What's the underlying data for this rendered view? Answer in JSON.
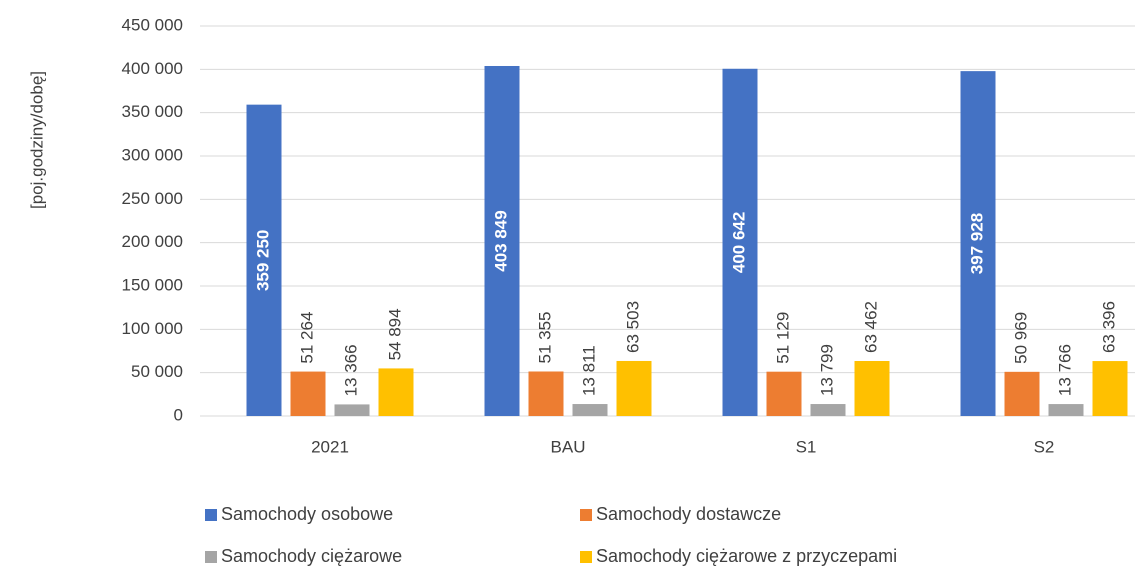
{
  "chart_data": {
    "type": "bar",
    "y_label": "[poj.godziny/dobę]",
    "categories": [
      "2021",
      "BAU",
      "S1",
      "S2"
    ],
    "series": [
      {
        "name": "Samochody osobowe",
        "color": "#4472c4",
        "values": [
          359250,
          403849,
          400642,
          397928
        ],
        "value_labels": [
          "359 250",
          "403 849",
          "400 642",
          "397 928"
        ]
      },
      {
        "name": "Samochody dostawcze",
        "color": "#ed7d31",
        "values": [
          51264,
          51355,
          51129,
          50969
        ],
        "value_labels": [
          "51 264",
          "51 355",
          "51 129",
          "50 969"
        ]
      },
      {
        "name": "Samochody ciężarowe",
        "color": "#a5a5a5",
        "values": [
          13366,
          13811,
          13799,
          13766
        ],
        "value_labels": [
          "13 366",
          "13 811",
          "13 799",
          "13 766"
        ]
      },
      {
        "name": "Samochody ciężarowe z przyczepami",
        "color": "#ffc000",
        "values": [
          54894,
          63503,
          63462,
          63396
        ],
        "value_labels": [
          "54 894",
          "63 503",
          "63 462",
          "63 396"
        ]
      }
    ],
    "ylim": [
      0,
      450000
    ],
    "yticks": [
      0,
      {
        "value": 50000,
        "label": "50 000"
      },
      {
        "value": 100000,
        "label": "100 000"
      },
      {
        "value": 150000,
        "label": "150 000"
      },
      {
        "value": 200000,
        "label": "200 000"
      },
      {
        "value": 250000,
        "label": "250 000"
      },
      {
        "value": 300000,
        "label": "300 000"
      },
      {
        "value": 350000,
        "label": "350 000"
      },
      {
        "value": 400000,
        "label": "400 000"
      },
      {
        "value": 450000,
        "label": "450 000"
      }
    ],
    "grid": true,
    "legend": "bottom"
  }
}
